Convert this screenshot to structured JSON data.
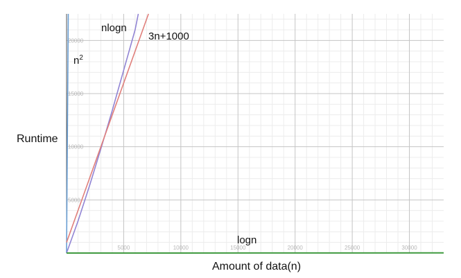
{
  "chart_data": {
    "type": "line",
    "xlabel": "Amount of data(n)",
    "ylabel": "Runtime",
    "xlim": [
      0,
      33000
    ],
    "ylim": [
      0,
      22500
    ],
    "x_ticks": [
      5000,
      10000,
      15000,
      20000,
      25000,
      30000
    ],
    "y_ticks": [
      5000,
      10000,
      15000,
      20000
    ],
    "x_tick_labels": [
      "5000",
      "10000",
      "15000",
      "20000",
      "25000",
      "30000"
    ],
    "y_tick_labels": [
      "5000",
      "10000",
      "15000",
      "20000"
    ],
    "grid": true,
    "series": [
      {
        "name": "n",
        "superscript": "2",
        "color": "#6a9fd4",
        "points": [
          [
            0,
            0
          ],
          [
            150,
            22500
          ]
        ]
      },
      {
        "name": "nlogn",
        "color": "#9184d4",
        "points": [
          [
            0,
            0
          ],
          [
            1000,
            3000
          ],
          [
            2000,
            6300
          ],
          [
            3000,
            9800
          ],
          [
            4000,
            13400
          ],
          [
            5000,
            17200
          ],
          [
            6000,
            21000
          ],
          [
            6280,
            22500
          ]
        ]
      },
      {
        "name": "3n+1000",
        "color": "#e07f7b",
        "points": [
          [
            0,
            1000
          ],
          [
            7170,
            22500
          ]
        ]
      },
      {
        "name": "logn",
        "color": "#3f9a3f",
        "points": [
          [
            0,
            0
          ],
          [
            33000,
            15
          ]
        ]
      }
    ]
  }
}
